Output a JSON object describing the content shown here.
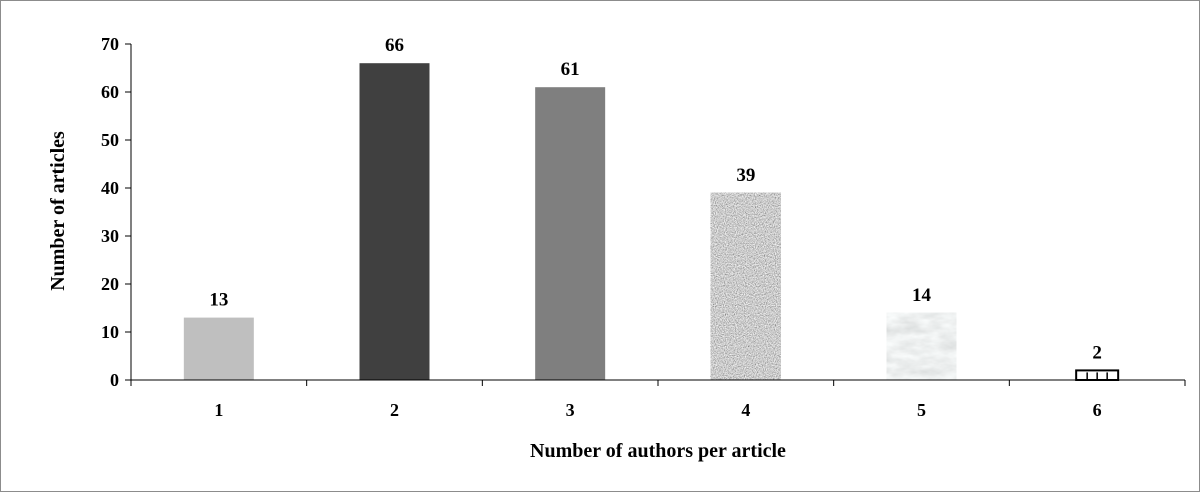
{
  "chart_data": {
    "type": "bar",
    "categories": [
      "1",
      "2",
      "3",
      "4",
      "5",
      "6"
    ],
    "values": [
      13,
      66,
      61,
      39,
      14,
      2
    ],
    "data_labels": [
      "13",
      "66",
      "61",
      "39",
      "14",
      "2"
    ],
    "title": "",
    "xlabel": "Number of authors per article",
    "ylabel": "Number of articles",
    "ylim": [
      0,
      70
    ],
    "yticks": [
      0,
      10,
      20,
      30,
      40,
      50,
      60,
      70
    ],
    "ytick_labels": [
      "0",
      "10",
      "20",
      "30",
      "40",
      "50",
      "60",
      "70"
    ],
    "grid": false,
    "legend": "none",
    "bar_fills": [
      "light-gray",
      "dark-gray",
      "medium-gray",
      "speckled-granite-texture",
      "light-marble-texture",
      "white-with-dark-outline"
    ],
    "bar_colors": [
      "#bfbfbf",
      "#404040",
      "#7f7f7f",
      "#9a9a9a",
      "#d8dcdc",
      "#ffffff"
    ]
  }
}
